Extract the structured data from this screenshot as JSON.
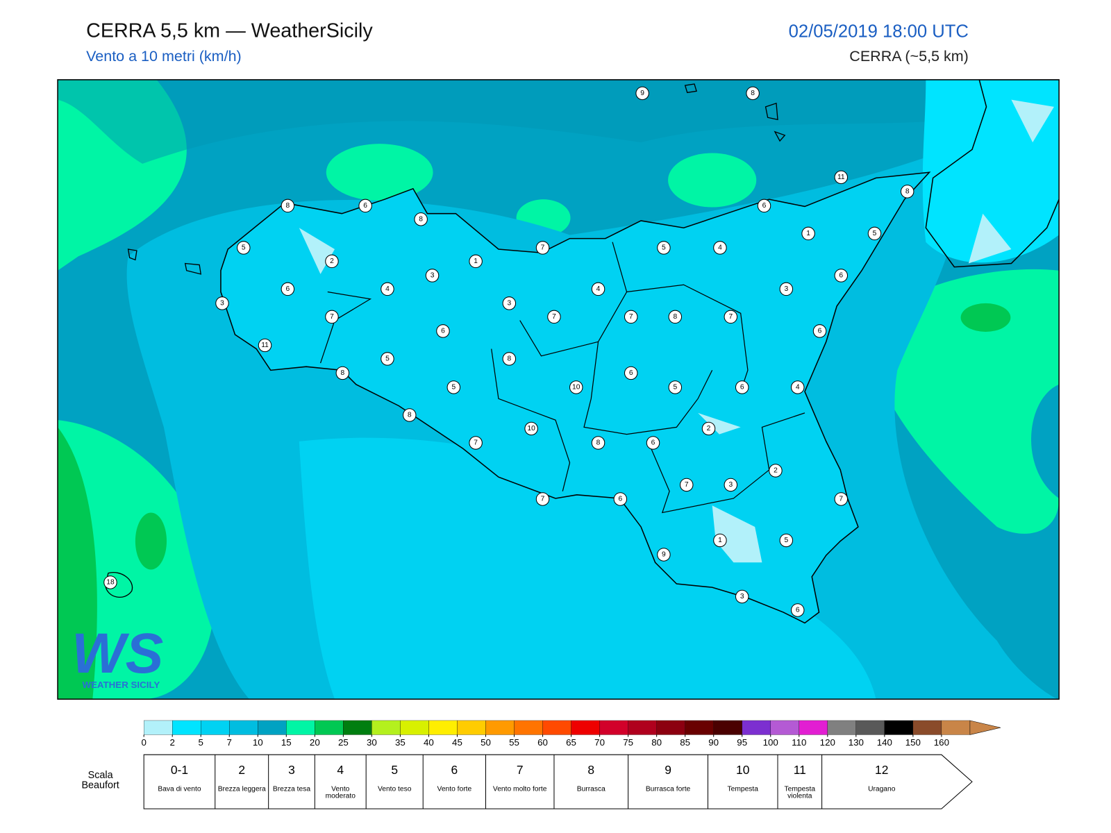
{
  "header": {
    "title": "CERRA 5,5 km — WeatherSicily",
    "subtitle": "Vento a 10 metri (km/h)",
    "datetime": "02/05/2019 18:00 UTC",
    "model": "CERRA (~5,5 km)"
  },
  "stations": [
    9,
    8,
    11,
    8,
    6,
    8,
    6,
    8,
    7,
    5,
    4,
    1,
    5,
    5,
    2,
    1,
    3,
    6,
    6,
    4,
    4,
    3,
    3,
    3,
    7,
    7,
    7,
    8,
    7,
    6,
    6,
    11,
    8,
    5,
    8,
    6,
    5,
    10,
    5,
    6,
    4,
    8,
    10,
    2,
    7,
    8,
    6,
    2,
    7,
    3,
    7,
    6,
    7,
    1,
    5,
    9,
    18,
    3,
    6
  ],
  "colorbar": {
    "ticks": [
      0,
      2,
      5,
      7,
      10,
      15,
      20,
      25,
      30,
      35,
      40,
      45,
      50,
      55,
      60,
      65,
      70,
      75,
      80,
      85,
      90,
      95,
      100,
      110,
      120,
      130,
      140,
      150,
      160
    ],
    "colors": [
      "#b2f1fa",
      "#00e4ff",
      "#00d2f2",
      "#00bde0",
      "#00a2c2",
      "#00f5a5",
      "#00c853",
      "#007e10",
      "#b4f01e",
      "#d8f000",
      "#ffee00",
      "#ffcc00",
      "#ff9a00",
      "#ff7400",
      "#ff4a00",
      "#ee0000",
      "#d2002a",
      "#b0001e",
      "#8c0010",
      "#690000",
      "#4a0000",
      "#7c2fd0",
      "#b45ad4",
      "#e21ed2",
      "#808080",
      "#595959",
      "#000000",
      "#8a4b2a",
      "#c98548"
    ]
  },
  "beaufort": {
    "label": "Scala Beaufort",
    "levels": [
      {
        "force": "0-1",
        "desc": "Bava di vento"
      },
      {
        "force": "2",
        "desc": "Brezza leggera"
      },
      {
        "force": "3",
        "desc": "Brezza tesa"
      },
      {
        "force": "4",
        "desc": "Vento moderato"
      },
      {
        "force": "5",
        "desc": "Vento teso"
      },
      {
        "force": "6",
        "desc": "Vento forte"
      },
      {
        "force": "7",
        "desc": "Vento molto forte"
      },
      {
        "force": "8",
        "desc": "Burrasca"
      },
      {
        "force": "9",
        "desc": "Burrasca forte"
      },
      {
        "force": "10",
        "desc": "Tempesta"
      },
      {
        "force": "11",
        "desc": "Tempesta violenta"
      },
      {
        "force": "12",
        "desc": "Uragano"
      }
    ]
  },
  "logo": {
    "mark": "WS",
    "name": "WEATHER SICILY"
  }
}
